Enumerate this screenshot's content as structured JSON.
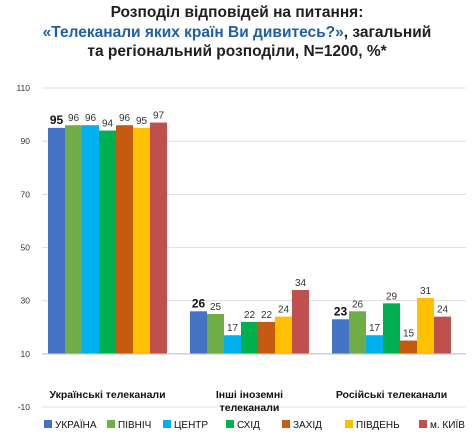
{
  "title": {
    "line1": "Розподіл відповідей на питання:",
    "line2_highlight": "«Телеканали яких країн Ви дивитесь?»",
    "line2_rest": ", загальний",
    "line3": "та регіональний розподіли, N=1200, %*"
  },
  "chart_data": {
    "type": "bar",
    "categories": [
      "Українські телеканали",
      "Інші іноземні телеканали",
      "Російські телеканали"
    ],
    "series": [
      {
        "name": "УКРАЇНА",
        "values": [
          95,
          26,
          23
        ],
        "color": "#4472c4"
      },
      {
        "name": "ПІВНІЧ",
        "values": [
          96,
          25,
          26
        ],
        "color": "#70ad47"
      },
      {
        "name": "ЦЕНТР",
        "values": [
          96,
          17,
          17
        ],
        "color": "#00b0f0"
      },
      {
        "name": "СХІД",
        "values": [
          94,
          22,
          29
        ],
        "color": "#00b050"
      },
      {
        "name": "ЗАХІД",
        "values": [
          96,
          22,
          15
        ],
        "color": "#c55a11"
      },
      {
        "name": "ПІВДЕНЬ",
        "values": [
          95,
          24,
          31
        ],
        "color": "#ffc000"
      },
      {
        "name": "м. КИЇВ",
        "values": [
          97,
          34,
          24
        ],
        "color": "#c0504d"
      }
    ],
    "yticks": [
      -10,
      10,
      30,
      50,
      70,
      90,
      110
    ],
    "ylim": [
      -10,
      110
    ],
    "grid": true,
    "legend": "bottom"
  }
}
